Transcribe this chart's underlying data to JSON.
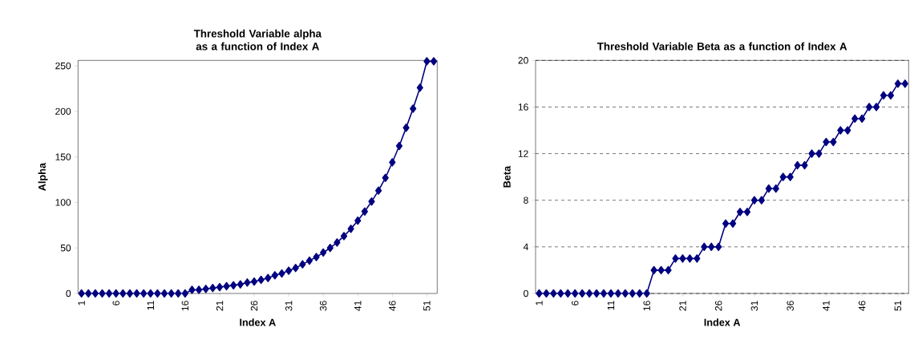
{
  "chart_data": [
    {
      "type": "line",
      "title": "Threshold Variable alpha as a function of Index A",
      "xlabel": "Index A",
      "ylabel": "Alpha",
      "categories": [
        "1",
        null,
        null,
        null,
        null,
        "6",
        null,
        null,
        null,
        null,
        "11",
        null,
        null,
        null,
        null,
        "16",
        null,
        null,
        null,
        null,
        "21",
        null,
        null,
        null,
        null,
        "26",
        null,
        null,
        null,
        null,
        "31",
        null,
        null,
        null,
        null,
        "36",
        null,
        null,
        null,
        null,
        "41",
        null,
        null,
        null,
        null,
        "46",
        null,
        null,
        null,
        null,
        "51",
        null
      ],
      "series": [
        {
          "color": "#000080",
          "values": [
            0,
            0,
            0,
            0,
            0,
            0,
            0,
            0,
            0,
            0,
            0,
            0,
            0,
            0,
            0,
            0,
            4,
            4,
            5,
            6,
            7,
            8,
            9,
            10,
            12,
            13,
            15,
            17,
            20,
            22,
            25,
            28,
            32,
            36,
            40,
            45,
            50,
            56,
            63,
            71,
            80,
            90,
            101,
            113,
            127,
            144,
            162,
            182,
            203,
            226,
            255,
            255
          ]
        }
      ],
      "ylim": [
        0,
        256
      ],
      "yticks": [
        0,
        50,
        100,
        150,
        200,
        250
      ],
      "marker": "diamond",
      "line_style": "solid",
      "grid": false
    },
    {
      "type": "line",
      "title": "Threshold Variable Beta as a function of Index A",
      "xlabel": "Index A",
      "ylabel": "Beta",
      "categories": [
        "1",
        null,
        null,
        null,
        null,
        "6",
        null,
        null,
        null,
        null,
        "11",
        null,
        null,
        null,
        null,
        "16",
        null,
        null,
        null,
        null,
        "21",
        null,
        null,
        null,
        null,
        "26",
        null,
        null,
        null,
        null,
        "31",
        null,
        null,
        null,
        null,
        "36",
        null,
        null,
        null,
        null,
        "41",
        null,
        null,
        null,
        null,
        "46",
        null,
        null,
        null,
        null,
        "51",
        null
      ],
      "series": [
        {
          "color": "#000080",
          "values": [
            0,
            0,
            0,
            0,
            0,
            0,
            0,
            0,
            0,
            0,
            0,
            0,
            0,
            0,
            0,
            0,
            2,
            2,
            2,
            3,
            3,
            3,
            3,
            4,
            4,
            4,
            6,
            6,
            7,
            7,
            8,
            8,
            9,
            9,
            10,
            10,
            11,
            11,
            12,
            12,
            13,
            13,
            14,
            14,
            15,
            15,
            16,
            16,
            17,
            17,
            18,
            18
          ]
        }
      ],
      "ylim": [
        0,
        20
      ],
      "yticks": [
        0,
        4,
        8,
        12,
        16,
        20
      ],
      "marker": "diamond",
      "line_style": "solid",
      "grid": "y"
    }
  ]
}
